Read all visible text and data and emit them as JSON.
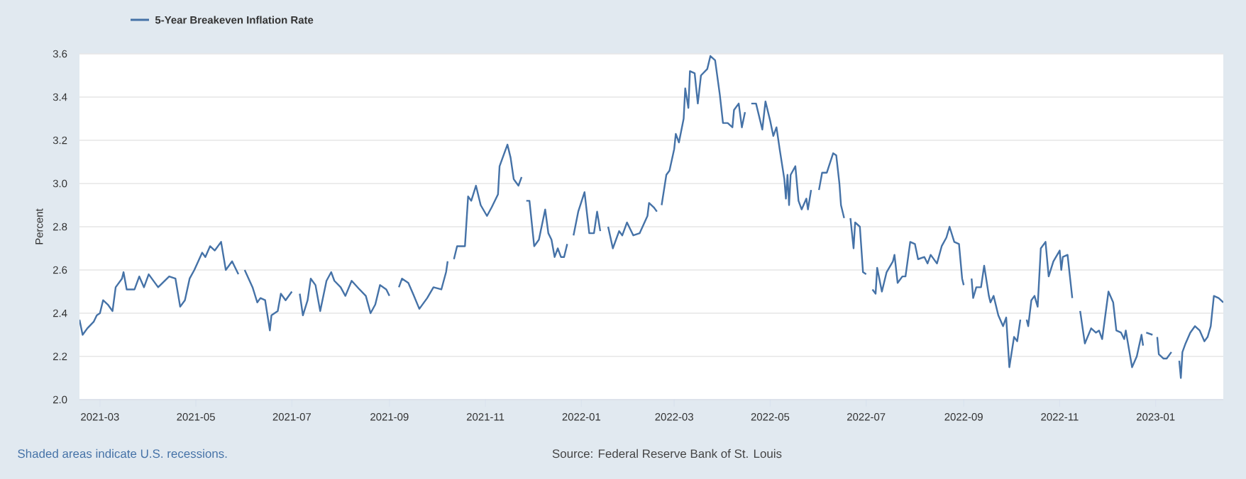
{
  "chart_data": {
    "type": "line",
    "ylabel": "Percent",
    "annotations": [
      "Shaded areas indicate U.S. recessions.",
      "Source: Federal Reserve Bank of St. Louis"
    ],
    "legend": "top left",
    "grid": "y",
    "xlim": [
      "2021-02-16",
      "2023-02-13"
    ],
    "xticks": [
      "2021-03",
      "2021-05",
      "2021-07",
      "2021-09",
      "2021-11",
      "2022-01",
      "2022-03",
      "2022-05",
      "2022-07",
      "2022-09",
      "2022-11",
      "2023-01"
    ],
    "ylim": [
      2.0,
      3.6
    ],
    "yticks": [
      {
        "value": 2.0,
        "label": "2.0"
      },
      {
        "value": 2.2,
        "label": "2.2"
      },
      {
        "value": 2.4,
        "label": "2.4"
      },
      {
        "value": 2.6,
        "label": "2.6"
      },
      {
        "value": 2.8,
        "label": "2.8"
      },
      {
        "value": 3.0,
        "label": "3.0"
      },
      {
        "value": 3.2,
        "label": "3.2"
      },
      {
        "value": 3.4,
        "label": "3.4"
      },
      {
        "value": 3.6,
        "label": "3.6"
      }
    ],
    "x": [
      "2021-02-16",
      "2021-02-18",
      "2021-02-21",
      "2021-02-25",
      "2021-02-27",
      "2021-03-01",
      "2021-03-03",
      "2021-03-06",
      "2021-03-09",
      "2021-03-11",
      "2021-03-15",
      "2021-03-16",
      "2021-03-18",
      "2021-03-23",
      "2021-03-26",
      "2021-03-29",
      "2021-04-01",
      "2021-04-07",
      "2021-04-14",
      "2021-04-18",
      "2021-04-21",
      "2021-04-24",
      "2021-04-27",
      "2021-04-30",
      "2021-05-05",
      "2021-05-07",
      "2021-05-10",
      "2021-05-13",
      "2021-05-17",
      "2021-05-20",
      "2021-05-24",
      "2021-05-28",
      "2021-05-30",
      "2021-06-01",
      "2021-06-06",
      "2021-06-09",
      "2021-06-11",
      "2021-06-14",
      "2021-06-17",
      "2021-06-18",
      "2021-06-22",
      "2021-06-24",
      "2021-06-27",
      "2021-07-01",
      "2021-07-04",
      "2021-07-06",
      "2021-07-08",
      "2021-07-11",
      "2021-07-13",
      "2021-07-16",
      "2021-07-19",
      "2021-07-23",
      "2021-07-26",
      "2021-07-28",
      "2021-08-01",
      "2021-08-04",
      "2021-08-08",
      "2021-08-13",
      "2021-08-17",
      "2021-08-20",
      "2021-08-23",
      "2021-08-26",
      "2021-08-30",
      "2021-09-01",
      "2021-09-04",
      "2021-09-07",
      "2021-09-09",
      "2021-09-13",
      "2021-09-16",
      "2021-09-20",
      "2021-09-25",
      "2021-09-29",
      "2021-10-04",
      "2021-10-07",
      "2021-10-08",
      "2021-10-10",
      "2021-10-12",
      "2021-10-14",
      "2021-10-19",
      "2021-10-21",
      "2021-10-23",
      "2021-10-26",
      "2021-10-29",
      "2021-11-02",
      "2021-11-05",
      "2021-11-09",
      "2021-11-10",
      "2021-11-12",
      "2021-11-15",
      "2021-11-17",
      "2021-11-19",
      "2021-11-22",
      "2021-11-24",
      "2021-11-25",
      "2021-11-27",
      "2021-11-29",
      "2021-12-02",
      "2021-12-05",
      "2021-12-09",
      "2021-12-11",
      "2021-12-13",
      "2021-12-15",
      "2021-12-17",
      "2021-12-19",
      "2021-12-21",
      "2021-12-23",
      "2021-12-25",
      "2021-12-27",
      "2021-12-30",
      "2022-01-03",
      "2022-01-06",
      "2022-01-09",
      "2022-01-11",
      "2022-01-13",
      "2022-01-15",
      "2022-01-18",
      "2022-01-21",
      "2022-01-25",
      "2022-01-27",
      "2022-01-30",
      "2022-02-03",
      "2022-02-07",
      "2022-02-12",
      "2022-02-13",
      "2022-02-16",
      "2022-02-18",
      "2022-02-19",
      "2022-02-21",
      "2022-02-24",
      "2022-02-26",
      "2022-03-01",
      "2022-03-02",
      "2022-03-04",
      "2022-03-07",
      "2022-03-08",
      "2022-03-10",
      "2022-03-11",
      "2022-03-14",
      "2022-03-16",
      "2022-03-18",
      "2022-03-22",
      "2022-03-24",
      "2022-03-27",
      "2022-03-30",
      "2022-04-01",
      "2022-04-04",
      "2022-04-07",
      "2022-04-08",
      "2022-04-11",
      "2022-04-13",
      "2022-04-15",
      "2022-04-17",
      "2022-04-19",
      "2022-04-22",
      "2022-04-26",
      "2022-04-28",
      "2022-05-01",
      "2022-05-03",
      "2022-05-05",
      "2022-05-07",
      "2022-05-10",
      "2022-05-11",
      "2022-05-12",
      "2022-05-13",
      "2022-05-14",
      "2022-05-17",
      "2022-05-19",
      "2022-05-21",
      "2022-05-24",
      "2022-05-25",
      "2022-05-27",
      "2022-05-29",
      "2022-06-01",
      "2022-06-03",
      "2022-06-06",
      "2022-06-10",
      "2022-06-12",
      "2022-06-14",
      "2022-06-15",
      "2022-06-17",
      "2022-06-19",
      "2022-06-21",
      "2022-06-23",
      "2022-06-24",
      "2022-06-27",
      "2022-06-29",
      "2022-07-01",
      "2022-07-03",
      "2022-07-05",
      "2022-07-07",
      "2022-07-08",
      "2022-07-11",
      "2022-07-14",
      "2022-07-18",
      "2022-07-19",
      "2022-07-21",
      "2022-07-24",
      "2022-07-26",
      "2022-07-29",
      "2022-08-01",
      "2022-08-03",
      "2022-08-07",
      "2022-08-09",
      "2022-08-11",
      "2022-08-15",
      "2022-08-18",
      "2022-08-21",
      "2022-08-23",
      "2022-08-26",
      "2022-08-29",
      "2022-08-31",
      "2022-09-01",
      "2022-09-04",
      "2022-09-06",
      "2022-09-07",
      "2022-09-09",
      "2022-09-12",
      "2022-09-14",
      "2022-09-17",
      "2022-09-18",
      "2022-09-20",
      "2022-09-23",
      "2022-09-26",
      "2022-09-28",
      "2022-09-30",
      "2022-10-03",
      "2022-10-05",
      "2022-10-07",
      "2022-10-09",
      "2022-10-11",
      "2022-10-12",
      "2022-10-14",
      "2022-10-16",
      "2022-10-18",
      "2022-10-20",
      "2022-10-23",
      "2022-10-25",
      "2022-10-28",
      "2022-11-01",
      "2022-11-02",
      "2022-11-03",
      "2022-11-06",
      "2022-11-09",
      "2022-11-11",
      "2022-11-14",
      "2022-11-17",
      "2022-11-21",
      "2022-11-24",
      "2022-11-26",
      "2022-11-28",
      "2022-12-02",
      "2022-12-05",
      "2022-12-07",
      "2022-12-10",
      "2022-12-12",
      "2022-12-13",
      "2022-12-17",
      "2022-12-20",
      "2022-12-23",
      "2022-12-24",
      "2022-12-25",
      "2022-12-26",
      "2022-12-30",
      "2022-12-31",
      "2023-01-02",
      "2023-01-03",
      "2023-01-06",
      "2023-01-08",
      "2023-01-11",
      "2023-01-13",
      "2023-01-16",
      "2023-01-17",
      "2023-01-18",
      "2023-01-20",
      "2023-01-23",
      "2023-01-26",
      "2023-01-29",
      "2023-02-01",
      "2023-02-03",
      "2023-02-05",
      "2023-02-07",
      "2023-02-10",
      "2023-02-13"
    ],
    "series": [
      {
        "name": "5-Year Breakeven Inflation Rate",
        "color": "#4572a7",
        "values": [
          2.37,
          2.3,
          2.33,
          2.36,
          2.39,
          2.4,
          2.46,
          2.44,
          2.41,
          2.52,
          2.56,
          2.59,
          2.51,
          2.51,
          2.57,
          2.52,
          2.58,
          2.52,
          2.57,
          2.56,
          2.43,
          2.46,
          2.56,
          2.6,
          2.68,
          2.66,
          2.71,
          2.69,
          2.73,
          2.6,
          2.64,
          2.58,
          null,
          2.6,
          2.52,
          2.45,
          2.47,
          2.46,
          2.32,
          2.39,
          2.41,
          2.49,
          2.46,
          2.5,
          null,
          2.49,
          2.39,
          2.46,
          2.56,
          2.53,
          2.41,
          2.55,
          2.59,
          2.55,
          2.52,
          2.48,
          2.55,
          2.51,
          2.48,
          2.4,
          2.44,
          2.53,
          2.51,
          2.48,
          null,
          2.52,
          2.56,
          2.54,
          2.49,
          2.42,
          2.47,
          2.52,
          2.51,
          2.59,
          2.64,
          null,
          2.65,
          2.71,
          2.71,
          2.94,
          2.92,
          2.99,
          2.9,
          2.85,
          2.89,
          2.95,
          3.08,
          3.12,
          3.18,
          3.12,
          3.02,
          2.99,
          3.03,
          null,
          2.92,
          2.92,
          2.71,
          2.74,
          2.88,
          2.77,
          2.74,
          2.66,
          2.7,
          2.66,
          2.66,
          2.72,
          null,
          2.76,
          2.87,
          2.96,
          2.77,
          2.77,
          2.87,
          2.78,
          null,
          2.8,
          2.7,
          2.78,
          2.76,
          2.82,
          2.76,
          2.77,
          2.85,
          2.91,
          2.89,
          2.87,
          null,
          2.9,
          3.04,
          3.06,
          3.16,
          3.23,
          3.19,
          3.3,
          3.44,
          3.35,
          3.52,
          3.51,
          3.37,
          3.5,
          3.53,
          3.59,
          3.57,
          3.41,
          3.28,
          3.28,
          3.26,
          3.34,
          3.37,
          3.26,
          3.33,
          null,
          3.37,
          3.37,
          3.25,
          3.38,
          3.29,
          3.22,
          3.26,
          3.16,
          3.02,
          2.93,
          3.04,
          2.9,
          3.04,
          3.08,
          2.92,
          2.88,
          2.93,
          2.88,
          2.97,
          null,
          2.97,
          3.05,
          3.05,
          3.14,
          3.13,
          3.0,
          2.9,
          2.84,
          null,
          2.84,
          2.7,
          2.82,
          2.8,
          2.59,
          2.58,
          null,
          2.51,
          2.49,
          2.61,
          2.5,
          2.59,
          2.64,
          2.67,
          2.54,
          2.57,
          2.57,
          2.73,
          2.72,
          2.65,
          2.66,
          2.63,
          2.67,
          2.63,
          2.71,
          2.75,
          2.8,
          2.73,
          2.72,
          2.56,
          2.53,
          null,
          2.56,
          2.47,
          2.52,
          2.52,
          2.62,
          2.48,
          2.45,
          2.48,
          2.39,
          2.34,
          2.38,
          2.15,
          2.29,
          2.27,
          2.37,
          null,
          2.37,
          2.34,
          2.46,
          2.48,
          2.43,
          2.7,
          2.73,
          2.57,
          2.64,
          2.69,
          2.6,
          2.66,
          2.67,
          2.47,
          null,
          2.41,
          2.26,
          2.33,
          2.31,
          2.32,
          2.28,
          2.5,
          2.45,
          2.32,
          2.31,
          2.28,
          2.32,
          2.15,
          2.2,
          2.3,
          2.25,
          null,
          2.31,
          2.3,
          null,
          2.29,
          2.21,
          2.19,
          2.19,
          2.22,
          null,
          2.18,
          2.1,
          2.22,
          2.26,
          2.31,
          2.34,
          2.32,
          2.27,
          2.29,
          2.34,
          2.48,
          2.47,
          2.45
        ]
      }
    ]
  }
}
